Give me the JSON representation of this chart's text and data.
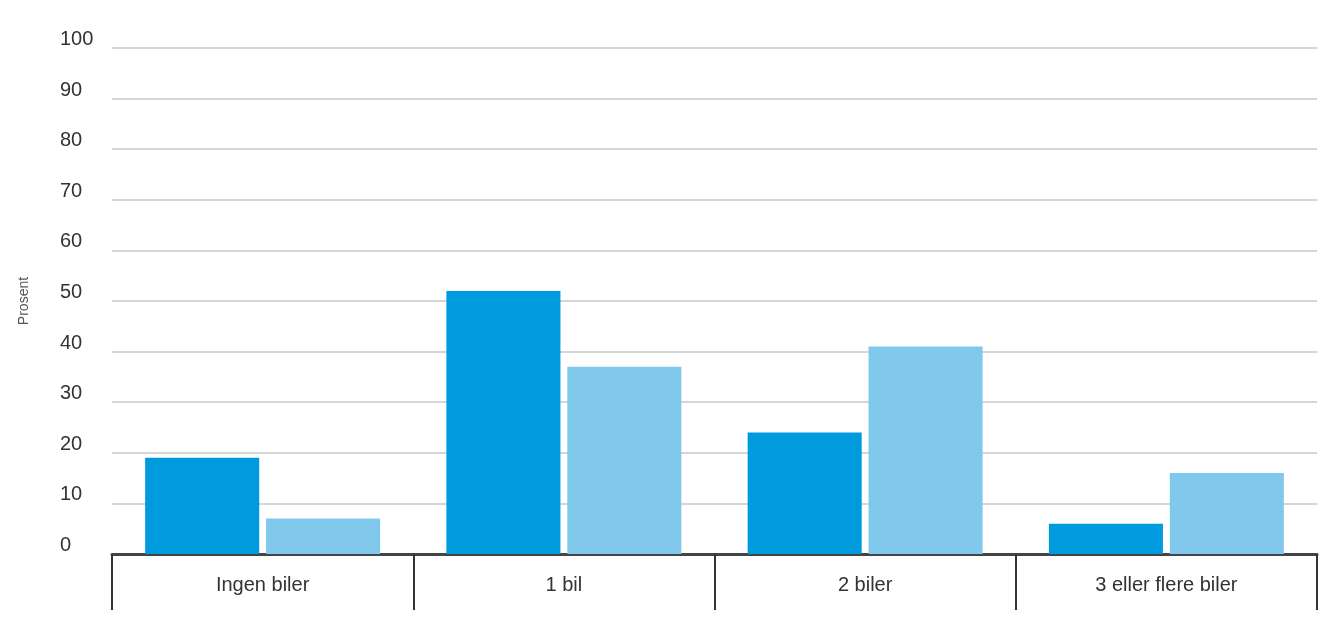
{
  "chart_data": {
    "type": "bar",
    "ylabel": "Prosent",
    "categories": [
      "Ingen biler",
      "1 bil",
      "2 biler",
      "3 eller flere biler"
    ],
    "series": [
      {
        "color": "#009ade",
        "values": [
          19,
          52,
          24,
          6
        ]
      },
      {
        "color": "#80c9ed",
        "values": [
          7,
          37,
          41,
          16
        ]
      }
    ],
    "ylim": [
      0,
      100
    ],
    "yticks": [
      0,
      10,
      20,
      30,
      40,
      50,
      60,
      70,
      80,
      90,
      100
    ],
    "grid": "y"
  }
}
